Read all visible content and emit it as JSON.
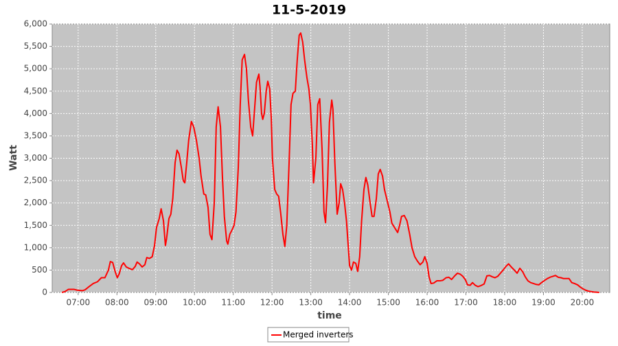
{
  "chart_data": {
    "type": "line",
    "title": "11-5-2019",
    "x_label": "time",
    "y_label": "Watt",
    "xlim": [
      6.33,
      20.71
    ],
    "ylim": [
      0,
      6000
    ],
    "xticks": [
      {
        "value": 7,
        "label": "07:00"
      },
      {
        "value": 8,
        "label": "08:00"
      },
      {
        "value": 9,
        "label": "09:00"
      },
      {
        "value": 10,
        "label": "10:00"
      },
      {
        "value": 11,
        "label": "11:00"
      },
      {
        "value": 12,
        "label": "12:00"
      },
      {
        "value": 13,
        "label": "13:00"
      },
      {
        "value": 14,
        "label": "14:00"
      },
      {
        "value": 15,
        "label": "15:00"
      },
      {
        "value": 16,
        "label": "16:00"
      },
      {
        "value": 17,
        "label": "17:00"
      },
      {
        "value": 18,
        "label": "18:00"
      },
      {
        "value": 19,
        "label": "19:00"
      },
      {
        "value": 20,
        "label": "20:00"
      }
    ],
    "yticks": [
      0,
      500,
      {
        "value": 1000,
        "label": "1,000"
      },
      {
        "value": 1500,
        "label": "1,500"
      },
      {
        "value": 2000,
        "label": "2,000"
      },
      {
        "value": 2500,
        "label": "2,500"
      },
      {
        "value": 3000,
        "label": "3,000"
      },
      {
        "value": 3500,
        "label": "3,500"
      },
      {
        "value": 4000,
        "label": "4,000"
      },
      {
        "value": 4500,
        "label": "4,500"
      },
      {
        "value": 5000,
        "label": "5,000"
      },
      {
        "value": 5500,
        "label": "5,500"
      },
      {
        "value": 6000,
        "label": "6,000"
      }
    ],
    "grid": true,
    "legend": "bottom",
    "x": [
      6.58,
      6.66,
      6.75,
      6.89,
      6.98,
      7.11,
      7.18,
      7.28,
      7.39,
      7.5,
      7.6,
      7.69,
      7.78,
      7.83,
      7.89,
      7.96,
      8.01,
      8.06,
      8.12,
      8.17,
      8.24,
      8.31,
      8.4,
      8.47,
      8.52,
      8.58,
      8.65,
      8.72,
      8.77,
      8.84,
      8.91,
      8.97,
      9.02,
      9.09,
      9.14,
      9.2,
      9.25,
      9.28,
      9.34,
      9.39,
      9.44,
      9.5,
      9.55,
      9.6,
      9.66,
      9.71,
      9.75,
      9.8,
      9.85,
      9.92,
      9.98,
      10.05,
      10.12,
      10.17,
      10.24,
      10.29,
      10.35,
      10.4,
      10.45,
      10.51,
      10.56,
      10.61,
      10.67,
      10.72,
      10.77,
      10.83,
      10.86,
      10.91,
      10.97,
      11.02,
      11.07,
      11.13,
      11.18,
      11.23,
      11.29,
      11.34,
      11.39,
      11.45,
      11.5,
      11.55,
      11.6,
      11.66,
      11.69,
      11.73,
      11.76,
      11.8,
      11.85,
      11.89,
      11.94,
      11.98,
      12.01,
      12.07,
      12.12,
      12.17,
      12.22,
      12.28,
      12.33,
      12.38,
      12.44,
      12.49,
      12.54,
      12.6,
      12.65,
      12.7,
      12.74,
      12.79,
      12.84,
      12.9,
      12.95,
      12.99,
      13.04,
      13.07,
      13.13,
      13.18,
      13.23,
      13.29,
      13.34,
      13.38,
      13.43,
      13.48,
      13.54,
      13.57,
      13.62,
      13.68,
      13.73,
      13.77,
      13.82,
      13.87,
      13.92,
      13.96,
      14.0,
      14.05,
      14.1,
      14.16,
      14.21,
      14.26,
      14.31,
      14.37,
      14.42,
      14.47,
      14.53,
      14.58,
      14.63,
      14.69,
      14.74,
      14.79,
      14.85,
      14.9,
      14.97,
      15.04,
      15.09,
      15.16,
      15.24,
      15.29,
      15.34,
      15.41,
      15.48,
      15.55,
      15.61,
      15.68,
      15.75,
      15.82,
      15.89,
      15.94,
      16.0,
      16.05,
      16.1,
      16.17,
      16.25,
      16.33,
      16.4,
      16.49,
      16.56,
      16.63,
      16.71,
      16.78,
      16.85,
      16.92,
      16.99,
      17.04,
      17.11,
      17.17,
      17.24,
      17.31,
      17.38,
      17.47,
      17.54,
      17.61,
      17.68,
      17.75,
      17.82,
      17.89,
      17.96,
      18.03,
      18.1,
      18.18,
      18.25,
      18.32,
      18.39,
      18.46,
      18.53,
      18.6,
      18.67,
      18.74,
      18.81,
      18.88,
      18.95,
      19.03,
      19.1,
      19.17,
      19.24,
      19.31,
      19.38,
      19.45,
      19.52,
      19.59,
      19.66,
      19.73,
      19.8,
      19.88,
      19.95,
      20.02,
      20.09,
      20.16,
      20.23,
      20.3,
      20.37,
      20.44
    ],
    "series": [
      {
        "name": "Merged inverters",
        "color": "#ff0000",
        "values": [
          0,
          20,
          70,
          70,
          50,
          40,
          60,
          130,
          200,
          240,
          330,
          330,
          500,
          690,
          670,
          450,
          330,
          420,
          600,
          660,
          570,
          540,
          510,
          580,
          680,
          640,
          570,
          620,
          780,
          760,
          800,
          1050,
          1450,
          1650,
          1870,
          1600,
          1050,
          1200,
          1650,
          1750,
          2100,
          2900,
          3180,
          3100,
          2800,
          2500,
          2450,
          2900,
          3400,
          3820,
          3700,
          3400,
          3000,
          2600,
          2200,
          2180,
          1900,
          1300,
          1180,
          2000,
          3700,
          4150,
          3700,
          2600,
          1700,
          1150,
          1080,
          1300,
          1400,
          1500,
          1800,
          2800,
          4200,
          5200,
          5320,
          5000,
          4300,
          3700,
          3500,
          4100,
          4700,
          4880,
          4600,
          4000,
          3870,
          4000,
          4500,
          4720,
          4550,
          3900,
          3000,
          2300,
          2200,
          2150,
          1800,
          1300,
          1030,
          1500,
          2900,
          4200,
          4450,
          4500,
          5200,
          5750,
          5800,
          5600,
          5200,
          4800,
          4550,
          4200,
          3300,
          2450,
          3000,
          4200,
          4330,
          3200,
          1800,
          1560,
          2400,
          3800,
          4300,
          4100,
          2900,
          1750,
          2000,
          2430,
          2300,
          2000,
          1600,
          1100,
          600,
          500,
          680,
          650,
          470,
          800,
          1600,
          2300,
          2570,
          2400,
          2000,
          1700,
          1700,
          2100,
          2650,
          2750,
          2600,
          2300,
          2050,
          1800,
          1550,
          1450,
          1340,
          1500,
          1700,
          1720,
          1600,
          1300,
          1000,
          800,
          700,
          620,
          680,
          800,
          650,
          350,
          200,
          210,
          260,
          260,
          270,
          330,
          340,
          290,
          370,
          430,
          410,
          360,
          280,
          170,
          160,
          220,
          160,
          130,
          150,
          190,
          370,
          380,
          350,
          330,
          360,
          430,
          500,
          580,
          640,
          560,
          500,
          430,
          540,
          470,
          350,
          260,
          220,
          200,
          180,
          170,
          220,
          270,
          310,
          340,
          360,
          380,
          340,
          330,
          310,
          310,
          310,
          220,
          200,
          170,
          120,
          80,
          50,
          30,
          20,
          10,
          5,
          0
        ]
      }
    ]
  }
}
